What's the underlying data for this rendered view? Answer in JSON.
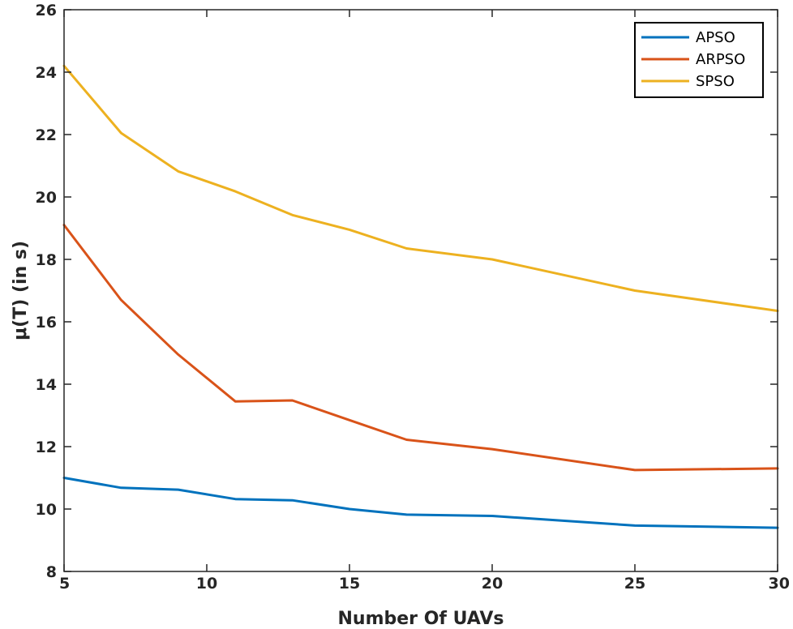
{
  "chart_data": {
    "type": "line",
    "title": "",
    "xlabel": "Number Of UAVs",
    "ylabel": "μ(T) (in s)",
    "xlim": [
      5,
      30
    ],
    "ylim": [
      8,
      26
    ],
    "xticks": [
      5,
      10,
      15,
      20,
      25,
      30
    ],
    "yticks": [
      8,
      10,
      12,
      14,
      16,
      18,
      20,
      22,
      24,
      26
    ],
    "grid": false,
    "legend_position": "top-right",
    "x": [
      5,
      7,
      9,
      11,
      13,
      15,
      17,
      20,
      25,
      30
    ],
    "series": [
      {
        "name": "APSO",
        "color": "#0072BD",
        "values": [
          11.0,
          10.68,
          10.62,
          10.32,
          10.28,
          10.0,
          9.82,
          9.78,
          9.47,
          9.4
        ]
      },
      {
        "name": "ARPSO",
        "color": "#D95319",
        "values": [
          19.1,
          16.7,
          14.95,
          13.45,
          13.48,
          12.85,
          12.22,
          11.92,
          11.25,
          11.3
        ]
      },
      {
        "name": "SPSO",
        "color": "#EDB120",
        "values": [
          24.2,
          22.05,
          20.82,
          20.18,
          19.42,
          18.95,
          18.35,
          18.0,
          17.0,
          16.35
        ]
      }
    ]
  }
}
